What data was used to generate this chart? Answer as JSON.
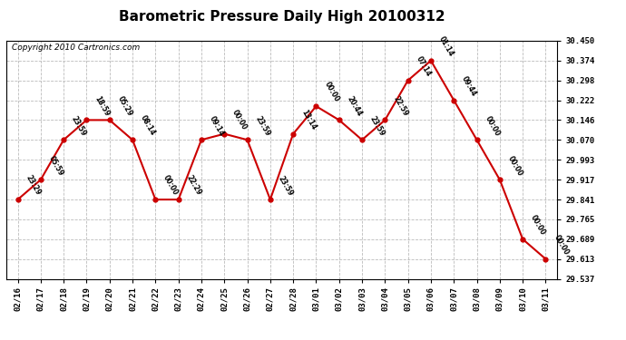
{
  "title": "Barometric Pressure Daily High 20100312",
  "copyright": "Copyright 2010 Cartronics.com",
  "x_labels": [
    "02/16",
    "02/17",
    "02/18",
    "02/19",
    "02/20",
    "02/21",
    "02/22",
    "02/23",
    "02/24",
    "02/25",
    "02/26",
    "02/27",
    "02/28",
    "03/01",
    "03/02",
    "03/03",
    "03/04",
    "03/05",
    "03/06",
    "03/07",
    "03/08",
    "03/09",
    "03/10",
    "03/11"
  ],
  "y_values": [
    29.841,
    29.917,
    30.07,
    30.146,
    30.146,
    30.07,
    29.841,
    29.841,
    30.07,
    30.093,
    30.07,
    29.841,
    30.093,
    30.199,
    30.146,
    30.07,
    30.146,
    30.298,
    30.374,
    30.222,
    30.07,
    29.917,
    29.689,
    29.613
  ],
  "time_labels": [
    "23:29",
    "05:59",
    "23:59",
    "18:59",
    "05:29",
    "08:14",
    "00:00",
    "22:29",
    "09:14",
    "00:00",
    "23:59",
    "23:59",
    "13:14",
    "00:00",
    "20:44",
    "23:59",
    "22:59",
    "07:14",
    "01:14",
    "09:44",
    "00:00",
    "00:00",
    "00:00",
    "00:00"
  ],
  "y_min": 29.537,
  "y_max": 30.45,
  "y_ticks": [
    29.537,
    29.613,
    29.689,
    29.765,
    29.841,
    29.917,
    29.993,
    30.07,
    30.146,
    30.222,
    30.298,
    30.374,
    30.45
  ],
  "line_color": "#cc0000",
  "marker_color": "#cc0000",
  "bg_color": "#ffffff",
  "grid_color": "#bbbbbb",
  "title_fontsize": 11,
  "copyright_fontsize": 6.5
}
